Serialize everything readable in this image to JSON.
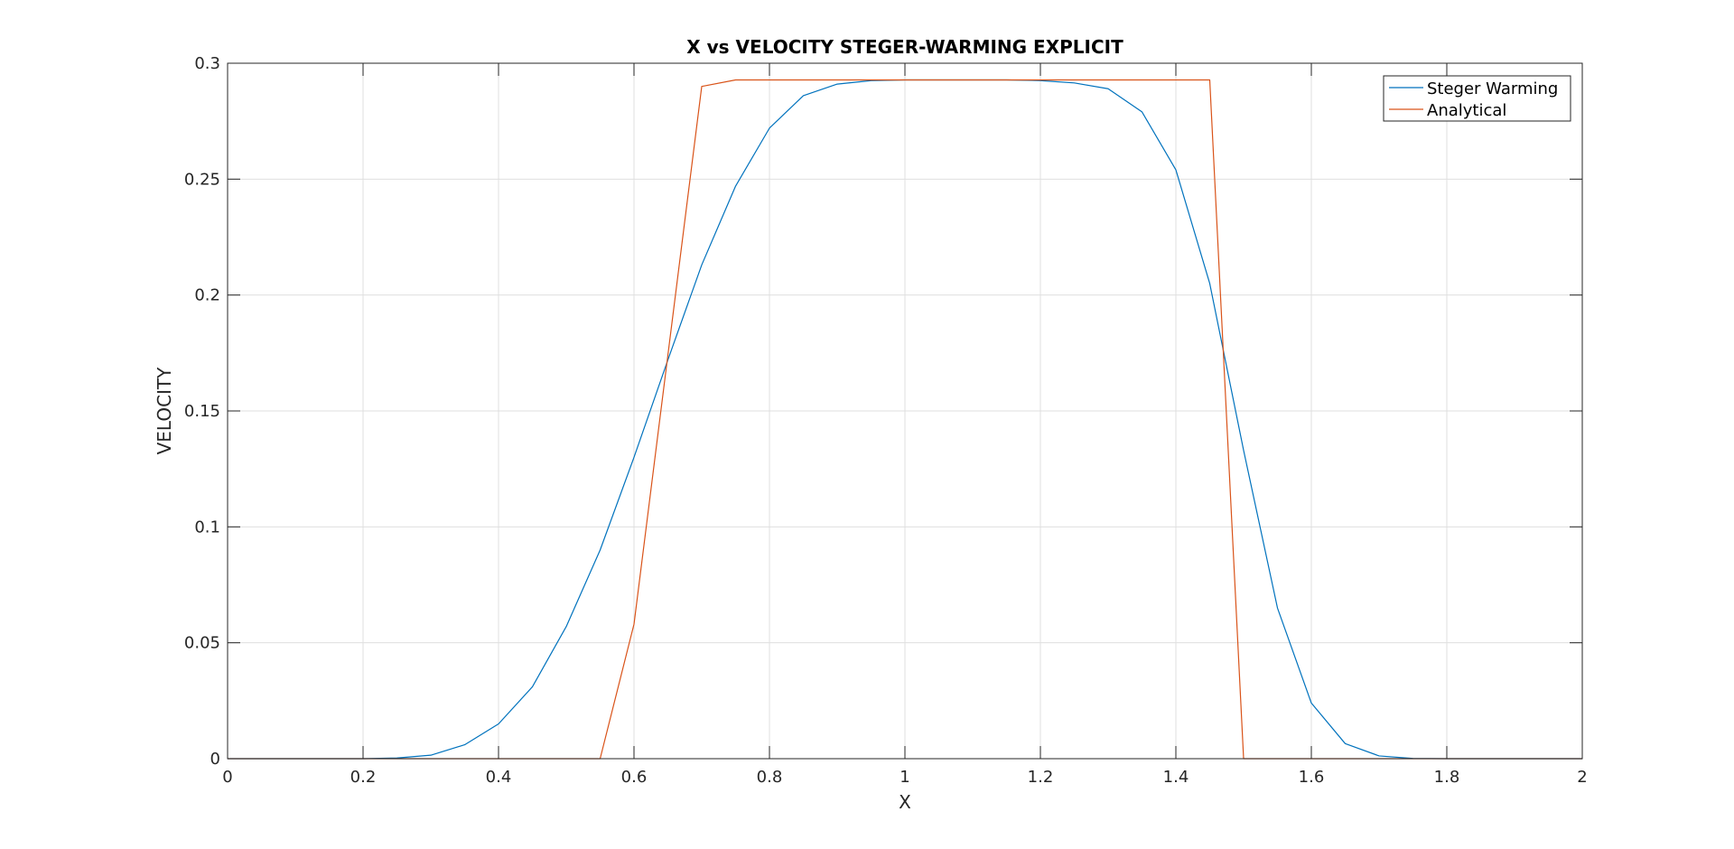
{
  "chart_data": {
    "type": "line",
    "title": "X vs VELOCITY STEGER-WARMING EXPLICIT",
    "xlabel": "X",
    "ylabel": "VELOCITY",
    "xlim": [
      0,
      2
    ],
    "ylim": [
      0,
      0.3
    ],
    "xticks": [
      0,
      0.2,
      0.4,
      0.6,
      0.8,
      1,
      1.2,
      1.4,
      1.6,
      1.8,
      2
    ],
    "xtick_labels": [
      "0",
      "0.2",
      "0.4",
      "0.6",
      "0.8",
      "1",
      "1.2",
      "1.4",
      "1.6",
      "1.8",
      "2"
    ],
    "yticks": [
      0,
      0.05,
      0.1,
      0.15,
      0.2,
      0.25,
      0.3
    ],
    "ytick_labels": [
      "0",
      "0.05",
      "0.1",
      "0.15",
      "0.2",
      "0.25",
      "0.3"
    ],
    "grid": true,
    "legend_position": "top-right",
    "series": [
      {
        "name": "Steger Warming",
        "color": "#0072bd",
        "x": [
          0,
          0.05,
          0.1,
          0.15,
          0.2,
          0.25,
          0.3,
          0.35,
          0.4,
          0.45,
          0.5,
          0.55,
          0.6,
          0.65,
          0.7,
          0.75,
          0.8,
          0.85,
          0.9,
          0.95,
          1.0,
          1.05,
          1.1,
          1.15,
          1.2,
          1.25,
          1.3,
          1.35,
          1.4,
          1.45,
          1.5,
          1.55,
          1.6,
          1.65,
          1.7,
          1.75,
          1.8,
          1.85,
          1.9,
          1.95,
          2.0
        ],
        "y": [
          0,
          0,
          0,
          0,
          0,
          0.0003,
          0.0015,
          0.006,
          0.015,
          0.031,
          0.057,
          0.09,
          0.13,
          0.172,
          0.213,
          0.247,
          0.272,
          0.286,
          0.291,
          0.2925,
          0.2928,
          0.2928,
          0.2928,
          0.2928,
          0.2925,
          0.2915,
          0.289,
          0.279,
          0.254,
          0.205,
          0.133,
          0.065,
          0.024,
          0.0065,
          0.0012,
          0.0001,
          0,
          0,
          0,
          0,
          0
        ]
      },
      {
        "name": "Analytical",
        "color": "#d95319",
        "x": [
          0,
          0.55,
          0.6,
          0.7,
          0.75,
          1.0,
          1.45,
          1.5,
          2.0
        ],
        "y": [
          0,
          0,
          0.058,
          0.29,
          0.2928,
          0.2928,
          0.2928,
          0,
          0
        ]
      }
    ]
  }
}
